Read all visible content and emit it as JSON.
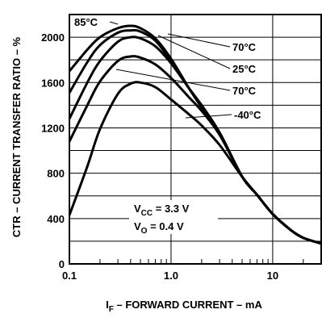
{
  "chart_data": {
    "type": "line",
    "xscale": "log",
    "xlim": [
      0.1,
      30
    ],
    "ylim": [
      0,
      2200
    ],
    "grid": true,
    "xlabel": {
      "main": "I",
      "sub": "F",
      "rest": " – FORWARD CURRENT – mA"
    },
    "ylabel": "CTR – CURRENT TRANSFER RATIO – %",
    "xticks": [
      {
        "value": 0.1,
        "label": "0.1"
      },
      {
        "value": 1,
        "label": "1.0"
      },
      {
        "value": 10,
        "label": "10"
      }
    ],
    "yticks": [
      {
        "value": 0,
        "label": "0"
      },
      {
        "value": 400,
        "label": "400"
      },
      {
        "value": 800,
        "label": "800"
      },
      {
        "value": 1200,
        "label": "1200"
      },
      {
        "value": 1600,
        "label": "1600"
      },
      {
        "value": 2000,
        "label": "2000"
      }
    ],
    "annotation": [
      {
        "main": "V",
        "sub": "CC",
        "rest": " = 3.3 V"
      },
      {
        "main": "V",
        "sub": "O",
        "rest": " = 0.4 V"
      }
    ],
    "series": [
      {
        "name": "85°C",
        "x": [
          0.1,
          0.15,
          0.2,
          0.3,
          0.4,
          0.5,
          0.7,
          1,
          1.5,
          2,
          3,
          5,
          7,
          10,
          15,
          20,
          30
        ],
        "y": [
          1700,
          1890,
          2000,
          2080,
          2100,
          2080,
          1990,
          1810,
          1550,
          1380,
          1150,
          770,
          610,
          440,
          300,
          230,
          180
        ]
      },
      {
        "name": "70°C",
        "x": [
          0.1,
          0.15,
          0.2,
          0.3,
          0.4,
          0.5,
          0.7,
          1,
          1.5,
          2,
          3,
          5,
          7,
          10,
          15,
          20,
          30
        ],
        "y": [
          1510,
          1780,
          1930,
          2040,
          2060,
          2050,
          1970,
          1790,
          1550,
          1390,
          1160,
          770,
          610,
          440,
          300,
          230,
          180
        ]
      },
      {
        "name": "25°C",
        "x": [
          0.1,
          0.15,
          0.2,
          0.3,
          0.4,
          0.5,
          0.7,
          1,
          1.5,
          2,
          3,
          5,
          7,
          10,
          15,
          20,
          30
        ],
        "y": [
          1280,
          1600,
          1790,
          1960,
          2000,
          1990,
          1920,
          1770,
          1550,
          1400,
          1160,
          770,
          610,
          440,
          300,
          230,
          180
        ]
      },
      {
        "name": "70°C",
        "x": [
          0.1,
          0.15,
          0.2,
          0.3,
          0.4,
          0.5,
          0.7,
          1,
          1.5,
          2,
          3,
          5,
          7,
          10,
          15,
          20,
          30
        ],
        "y": [
          1080,
          1400,
          1610,
          1790,
          1830,
          1820,
          1760,
          1640,
          1470,
          1350,
          1140,
          770,
          610,
          440,
          300,
          230,
          180
        ]
      },
      {
        "name": "-40°C",
        "x": [
          0.1,
          0.15,
          0.2,
          0.3,
          0.4,
          0.5,
          0.7,
          1,
          1.5,
          2,
          3,
          5,
          7,
          10,
          15,
          20,
          30
        ],
        "y": [
          430,
          860,
          1190,
          1500,
          1590,
          1600,
          1560,
          1450,
          1320,
          1220,
          1050,
          770,
          610,
          440,
          300,
          230,
          180
        ]
      }
    ],
    "curve_labels": [
      {
        "series": 0,
        "text": "85°C"
      },
      {
        "series": 1,
        "text": "70°C"
      },
      {
        "series": 2,
        "text": "25°C"
      },
      {
        "series": 3,
        "text": "70°C"
      },
      {
        "series": 4,
        "text": "-40°C"
      }
    ]
  }
}
